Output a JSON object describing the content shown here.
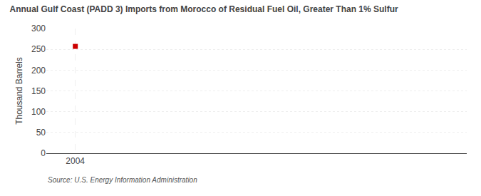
{
  "chart_data": {
    "type": "scatter",
    "title": "Annual Gulf Coast (PADD 3) Imports from Morocco of Residual Fuel Oil, Greater Than 1% Sulfur",
    "y_label": "Thousand Barrels",
    "annotations": [
      "Source: U.S. Energy Information Administration"
    ],
    "x": [
      2004
    ],
    "values": [
      257
    ],
    "color": "#cc0000",
    "marker": "square",
    "xlim": [
      2003.2,
      2014.8
    ],
    "xticks": [
      2004
    ],
    "ylim": [
      0,
      300
    ],
    "yticks": [
      0,
      50,
      100,
      150,
      200,
      250,
      300
    ],
    "grid": true
  }
}
